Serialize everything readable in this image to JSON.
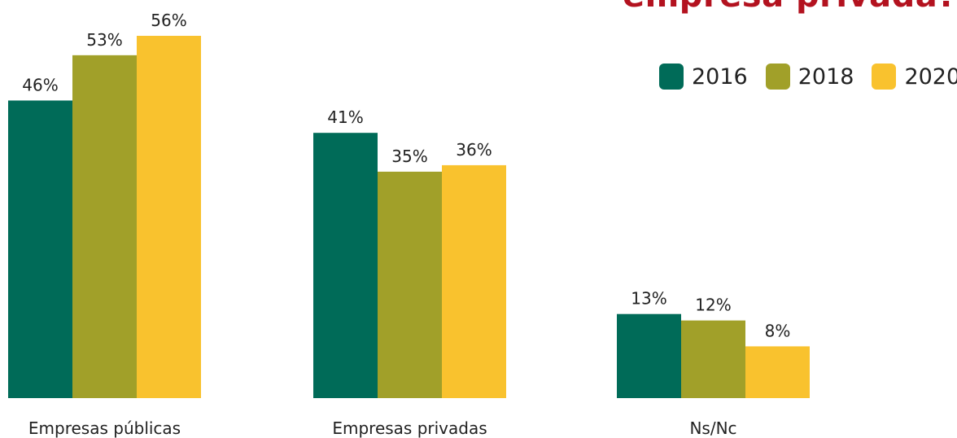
{
  "title_fragment": "empresa privada?",
  "colors": {
    "2016": "#006b58",
    "2018": "#a1a029",
    "2020": "#f9c22e"
  },
  "chart_data": {
    "type": "bar",
    "categories": [
      "Empresas públicas",
      "Empresas privadas",
      "Ns/Nc"
    ],
    "series": [
      {
        "name": "2016",
        "values": [
          46,
          41,
          13
        ],
        "labels": [
          "46%",
          "41%",
          "13%"
        ]
      },
      {
        "name": "2018",
        "values": [
          53,
          35,
          12
        ],
        "labels": [
          "53%",
          "35%",
          "12%"
        ]
      },
      {
        "name": "2020",
        "values": [
          56,
          36,
          8
        ],
        "labels": [
          "56%",
          "36%",
          "8%"
        ]
      }
    ],
    "legend_position": "top-right",
    "grid": false,
    "ylim": [
      0,
      56
    ]
  }
}
